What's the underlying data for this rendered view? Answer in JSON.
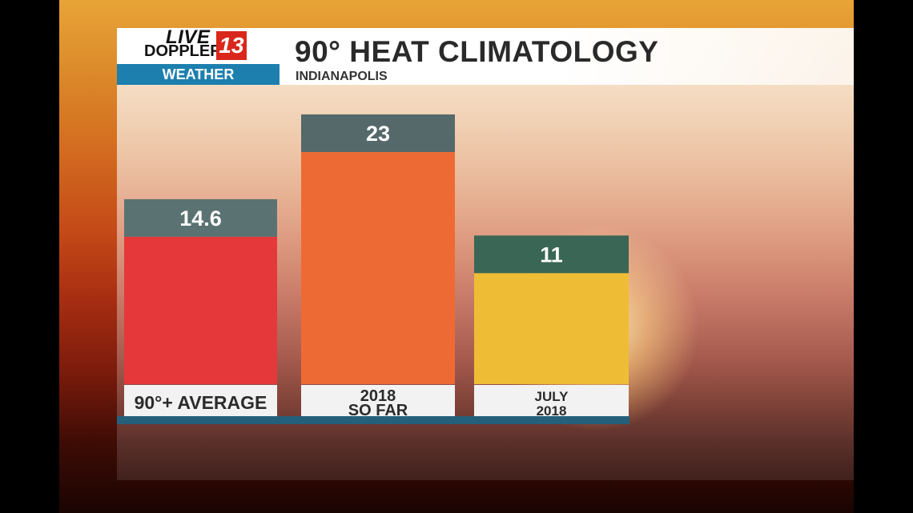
{
  "branding": {
    "logo_line1": "LIVE",
    "logo_line2": "DOPPLER",
    "logo_number": "13",
    "section": "WEATHER"
  },
  "header": {
    "title": "90° HEAT CLIMATOLOGY",
    "subtitle": "INDIANAPOLIS"
  },
  "colors": {
    "accent_blue": "#1d7fae",
    "logo_red": "#d9271c"
  },
  "chart_data": {
    "type": "bar",
    "categories": [
      [
        "90°+ AVERAGE"
      ],
      [
        "2018",
        "SO FAR"
      ],
      [
        "JULY",
        "2018"
      ]
    ],
    "values": [
      14.6,
      23,
      11
    ],
    "value_labels": [
      "14.6",
      "23",
      "11"
    ],
    "bar_colors": [
      "#e5383a",
      "#ee6a34",
      "#eebd35"
    ],
    "label_bar_colors": [
      "#5b7272",
      "#55696b",
      "#3a6655"
    ],
    "title": "90° HEAT CLIMATOLOGY",
    "subtitle": "INDIANAPOLIS",
    "ylim": [
      0,
      26
    ],
    "grid": false,
    "legend": "none"
  }
}
